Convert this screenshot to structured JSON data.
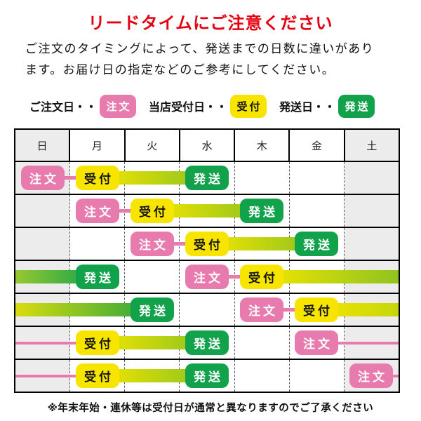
{
  "title": "リードタイムにご注意ください",
  "intro": {
    "line1": "ご注文のタイミングによって、発送までの日数に違いがあり",
    "line2": "ます。お届け日の指定などのご参考にしてください。"
  },
  "legend": {
    "order": {
      "label": "ご注文日・・",
      "badge": "注文"
    },
    "accept": {
      "label": "当店受付日・・",
      "badge": "受付"
    },
    "ship": {
      "label": "発送日・・",
      "badge": "発送"
    }
  },
  "badge_labels": {
    "order": "注文",
    "accept": "受付",
    "ship": "発送"
  },
  "colors": {
    "title_red": "#e50012",
    "order_pink": "#e87bae",
    "accept_yellow": "#f7e500",
    "ship_green": "#12a24b",
    "bar_gradient_start": "#f3e600",
    "bar_gradient_end": "#8fc31f",
    "weekend_gray": "#ececec"
  },
  "table": {
    "days": [
      "日",
      "月",
      "火",
      "水",
      "木",
      "金",
      "土"
    ],
    "weekend_indices": [
      0,
      6
    ],
    "rows": [
      {
        "items": [
          {
            "t": "order",
            "day": 0
          },
          {
            "t": "conn",
            "from": 0,
            "to": 1
          },
          {
            "t": "accept",
            "day": 1
          },
          {
            "t": "bar",
            "style": "main",
            "from": 1,
            "to": 3
          },
          {
            "t": "ship",
            "day": 3
          }
        ]
      },
      {
        "items": [
          {
            "t": "order",
            "day": 1
          },
          {
            "t": "conn",
            "from": 1,
            "to": 2
          },
          {
            "t": "accept",
            "day": 2
          },
          {
            "t": "bar",
            "style": "main",
            "from": 2,
            "to": 4
          },
          {
            "t": "ship",
            "day": 4
          }
        ]
      },
      {
        "items": [
          {
            "t": "order",
            "day": 2
          },
          {
            "t": "conn",
            "from": 2,
            "to": 3
          },
          {
            "t": "accept",
            "day": 3
          },
          {
            "t": "bar",
            "style": "main",
            "from": 3,
            "to": 5
          },
          {
            "t": "ship",
            "day": 5
          }
        ]
      },
      {
        "items": [
          {
            "t": "bar",
            "style": "green",
            "from": "L",
            "to": 1
          },
          {
            "t": "ship",
            "day": 1
          },
          {
            "t": "order",
            "day": 3
          },
          {
            "t": "conn",
            "from": 3,
            "to": 4
          },
          {
            "t": "accept",
            "day": 4
          },
          {
            "t": "bar",
            "style": "main",
            "from": 4,
            "to": "R"
          }
        ]
      },
      {
        "items": [
          {
            "t": "bar",
            "style": "ygreen",
            "from": "L",
            "to": 2
          },
          {
            "t": "ship",
            "day": 2
          },
          {
            "t": "order",
            "day": 4
          },
          {
            "t": "conn",
            "from": 4,
            "to": 5
          },
          {
            "t": "accept",
            "day": 5
          },
          {
            "t": "bar",
            "style": "yellow",
            "from": 5,
            "to": "R"
          }
        ]
      },
      {
        "items": [
          {
            "t": "pline",
            "from": "L",
            "to": 1
          },
          {
            "t": "accept",
            "day": 1
          },
          {
            "t": "bar",
            "style": "main",
            "from": 1,
            "to": 3
          },
          {
            "t": "ship",
            "day": 3
          },
          {
            "t": "order",
            "day": 5
          },
          {
            "t": "pline",
            "from": 5,
            "to": "R"
          }
        ]
      },
      {
        "items": [
          {
            "t": "pline",
            "from": "L",
            "to": 1
          },
          {
            "t": "accept",
            "day": 1
          },
          {
            "t": "bar",
            "style": "main",
            "from": 1,
            "to": 3
          },
          {
            "t": "ship",
            "day": 3
          },
          {
            "t": "order",
            "day": 6
          },
          {
            "t": "pline",
            "from": 6,
            "to": "R"
          }
        ]
      }
    ]
  },
  "footer": "※年末年始・連休等は受付日が通常と異なりますのでご了承ください"
}
